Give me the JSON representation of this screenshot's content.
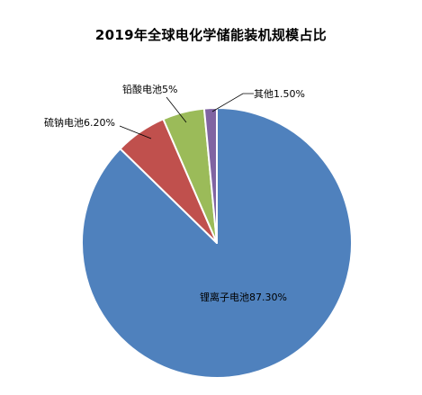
{
  "chart_data": {
    "type": "pie",
    "title": "2019年全球电化学储能装机规模占比",
    "slices": [
      {
        "label": "锂离子电池",
        "value": 87.3,
        "value_text": "87.30%",
        "color": "#4f81bd"
      },
      {
        "label": "硫钠电池",
        "value": 6.2,
        "value_text": "6.20%",
        "color": "#c0504d"
      },
      {
        "label": "铅酸电池",
        "value": 5.0,
        "value_text": "5%",
        "color": "#9bbb59"
      },
      {
        "label": "其他",
        "value": 1.5,
        "value_text": "1.50%",
        "color": "#8064a2"
      }
    ],
    "start_angle": "12 o'clock",
    "direction": "clockwise",
    "legend": "none"
  }
}
